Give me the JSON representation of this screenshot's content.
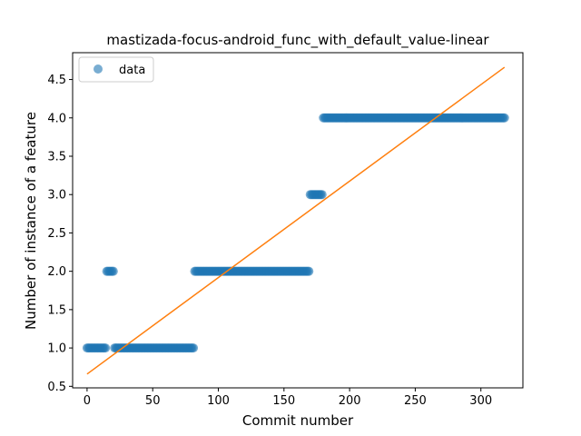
{
  "chart_data": {
    "type": "scatter",
    "title": "mastizada-focus-android_func_with_default_value-linear",
    "xlabel": "Commit number",
    "ylabel": "Number of instance of a feature",
    "xlim": [
      -11,
      332
    ],
    "ylim": [
      0.48,
      4.85
    ],
    "xticks": [
      0,
      50,
      100,
      150,
      200,
      250,
      300
    ],
    "yticks": [
      0.5,
      1.0,
      1.5,
      2.0,
      2.5,
      3.0,
      3.5,
      4.0,
      4.5
    ],
    "xtick_labels": [
      "0",
      "50",
      "100",
      "150",
      "200",
      "250",
      "300"
    ],
    "ytick_labels": [
      "0.5",
      "1.0",
      "1.5",
      "2.0",
      "2.5",
      "3.0",
      "3.5",
      "4.0",
      "4.5"
    ],
    "grid": false,
    "legend": {
      "position": "top-left",
      "entries": [
        "data"
      ]
    },
    "series": [
      {
        "name": "data",
        "kind": "scatter",
        "color": "#1f77b4",
        "segments": [
          {
            "x_start": 0,
            "x_end": 14,
            "y": 1
          },
          {
            "x_start": 15,
            "x_end": 20,
            "y": 2
          },
          {
            "x_start": 21,
            "x_end": 81,
            "y": 1
          },
          {
            "x_start": 82,
            "x_end": 169,
            "y": 2
          },
          {
            "x_start": 170,
            "x_end": 179,
            "y": 3
          },
          {
            "x_start": 180,
            "x_end": 318,
            "y": 4
          }
        ]
      },
      {
        "kind": "line",
        "color": "#ff7f0e",
        "points": [
          [
            0,
            0.66
          ],
          [
            318,
            4.66
          ]
        ]
      }
    ]
  }
}
